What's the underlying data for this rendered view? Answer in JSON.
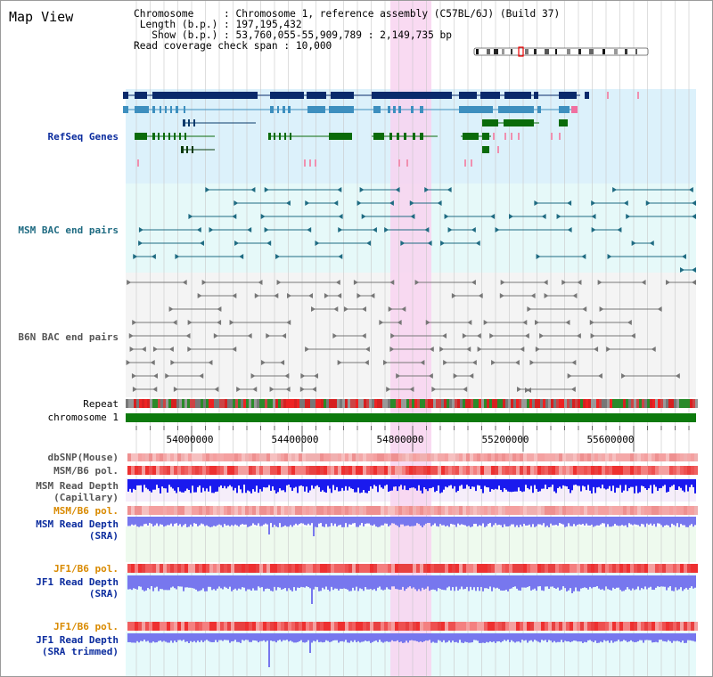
{
  "title": "Map View",
  "info": {
    "chromosome_key": "Chromosome    ",
    "chromosome_val": "Chromosome 1, reference assembly (C57BL/6J) (Build 37)",
    "length_key": "Length (b.p.)",
    "length_val": "197,195,432",
    "show_key": "Show (b.p.)",
    "show_val": "53,760,055-55,909,789 : 2,149,735 bp",
    "coverage_key": "Read coverage check span",
    "coverage_val": "10,000"
  },
  "tracks": {
    "refseq": "RefSeq Genes",
    "msm_bac": "MSM BAC end pairs",
    "b6n_bac": "B6N BAC end pairs",
    "repeat": "Repeat",
    "chromosome": "chromosome 1",
    "dbsnp": "dbSNP(Mouse)",
    "msm_b6_pol": "MSM/B6 pol.",
    "msm_depth_cap_1": "MSM Read Depth",
    "msm_depth_cap_2": "(Capillary)",
    "msm_b6_pol_2": "MSM/B6 pol.",
    "msm_depth_sra_1": "MSM Read Depth",
    "msm_depth_sra_2": "(SRA)",
    "jf1_b6_pol": "JF1/B6 pol.",
    "jf1_depth_sra_1": "JF1 Read Depth",
    "jf1_depth_sra_2": "(SRA)",
    "jf1_b6_pol_2": "JF1/B6 pol.",
    "jf1_depth_trim_1": "JF1 Read Depth",
    "jf1_depth_trim_2": "(SRA trimmed)"
  },
  "axis": {
    "ticks": [
      "54000000",
      "54400000",
      "54800000",
      "55200000",
      "55600000"
    ]
  },
  "colors": {
    "refseq_bg": "#dcf1fb",
    "msm_bg": "#e6f9f9",
    "b6n_bg": "#f4f4f4",
    "highlight": "#f8d4f0",
    "chromosome_bar": "#0d7a0d",
    "depth_blue": "#1a1aee",
    "depth_light": "#7777ee"
  }
}
